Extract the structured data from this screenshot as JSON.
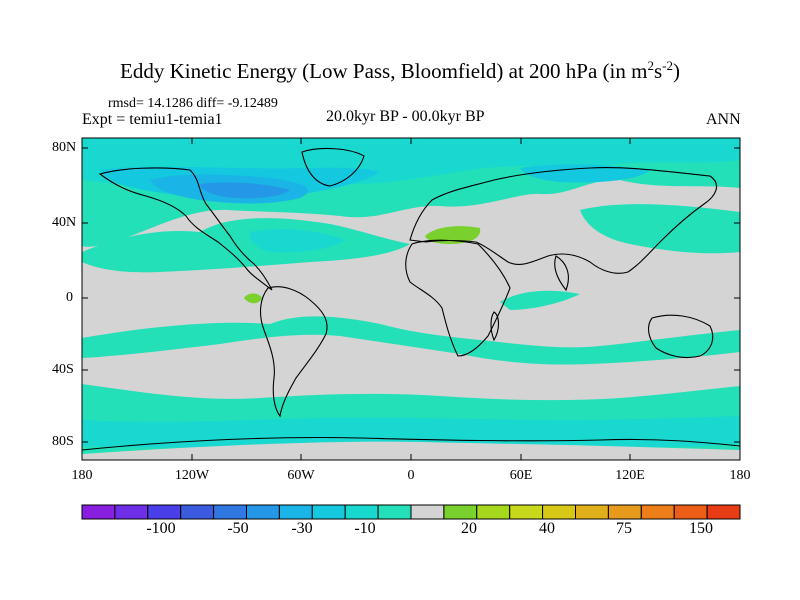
{
  "title_main": "Eddy Kinetic Energy (Low Pass, Bloomfield) at 200 hPa (in m",
  "title_sup1": "2",
  "title_mid": "s",
  "title_sup2": "-2",
  "title_end": ")",
  "stats": "rmsd= 14.1286 diff= -9.12489",
  "expt": "Expt = temiu1-temia1",
  "period": "20.0kyr BP - 00.0kyr BP",
  "season": "ANN",
  "lat_labels": [
    "80N",
    "40N",
    "0",
    "40S",
    "80S"
  ],
  "lon_labels": [
    "180",
    "120W",
    "60W",
    "0",
    "60E",
    "120E",
    "180"
  ],
  "colorbar": {
    "colors": [
      "#8a1ee0",
      "#6e2ee8",
      "#4a3ee8",
      "#3a5ae0",
      "#2f78e2",
      "#2498e6",
      "#1ab4e6",
      "#14c8e0",
      "#18d8d0",
      "#24e0b8",
      "#d4d4d4",
      "#7ad02c",
      "#a6d81e",
      "#c8d81a",
      "#d8c818",
      "#e0b01a",
      "#e89a1c",
      "#ec7e1a",
      "#ec5e18",
      "#e83c14"
    ],
    "labels": [
      "-100",
      "-50",
      "-30",
      "-10",
      "20",
      "40",
      "75",
      "150"
    ]
  },
  "map_colors": {
    "background": "#d4d4d4",
    "light": "#24e0b8",
    "medium": "#18d8d0",
    "dark": "#14c8e0",
    "darker": "#1ab4e6",
    "darkest": "#2498e6",
    "positive": "#7ad02c",
    "coast": "#000000"
  }
}
